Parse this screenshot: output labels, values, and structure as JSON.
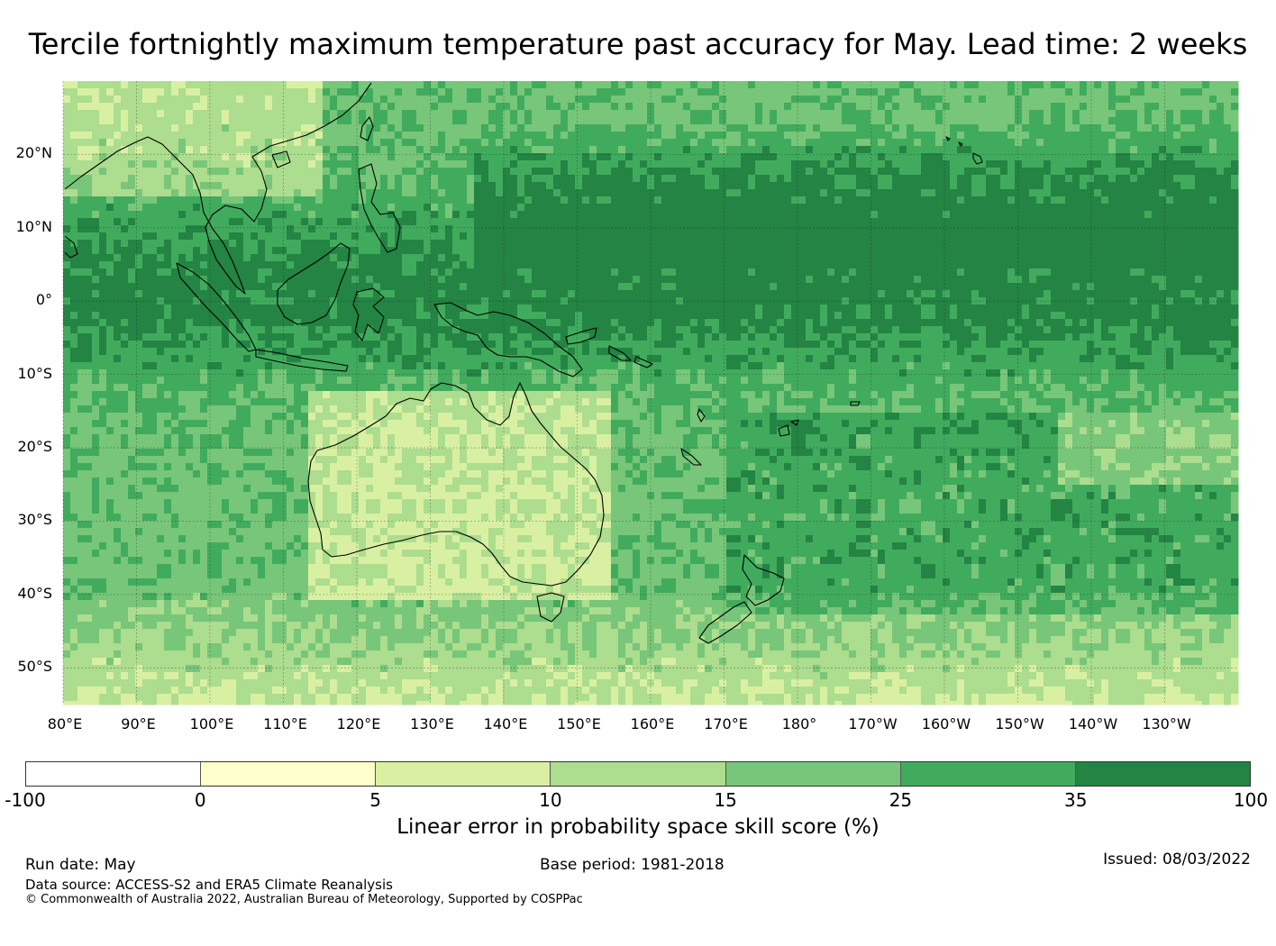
{
  "title": "Tercile fortnightly maximum temperature past accuracy for May. Lead time: 2 weeks",
  "map": {
    "lat_labels": [
      "20°N",
      "10°N",
      "0°",
      "10°S",
      "20°S",
      "30°S",
      "40°S",
      "50°S"
    ],
    "lon_labels": [
      "80°E",
      "90°E",
      "100°E",
      "110°E",
      "120°E",
      "130°E",
      "140°E",
      "150°E",
      "160°E",
      "170°E",
      "180°",
      "170°W",
      "160°W",
      "150°W",
      "140°W",
      "130°W"
    ],
    "lat_range": [
      -55,
      30
    ],
    "lon_range": [
      80,
      240
    ],
    "land_outline_color": "#000000"
  },
  "colorbar": {
    "ticks": [
      "-100",
      "0",
      "5",
      "10",
      "15",
      "25",
      "35",
      "100"
    ],
    "colors": [
      "#ffffff",
      "#ffffcc",
      "#d9f0a3",
      "#addd8e",
      "#78c679",
      "#41ab5d",
      "#238443"
    ],
    "label": "Linear error in probability space skill score (%)"
  },
  "footer": {
    "run_date": "Run date: May",
    "base_period": "Base period: 1981-2018",
    "issued": "Issued: 08/03/2022",
    "data_source": "Data source: ACCESS-S2 and ERA5 Climate Reanalysis",
    "copyright": "© Commonwealth of Australia 2022, Australian Bureau of Meteorology, Supported by COSPPac"
  }
}
